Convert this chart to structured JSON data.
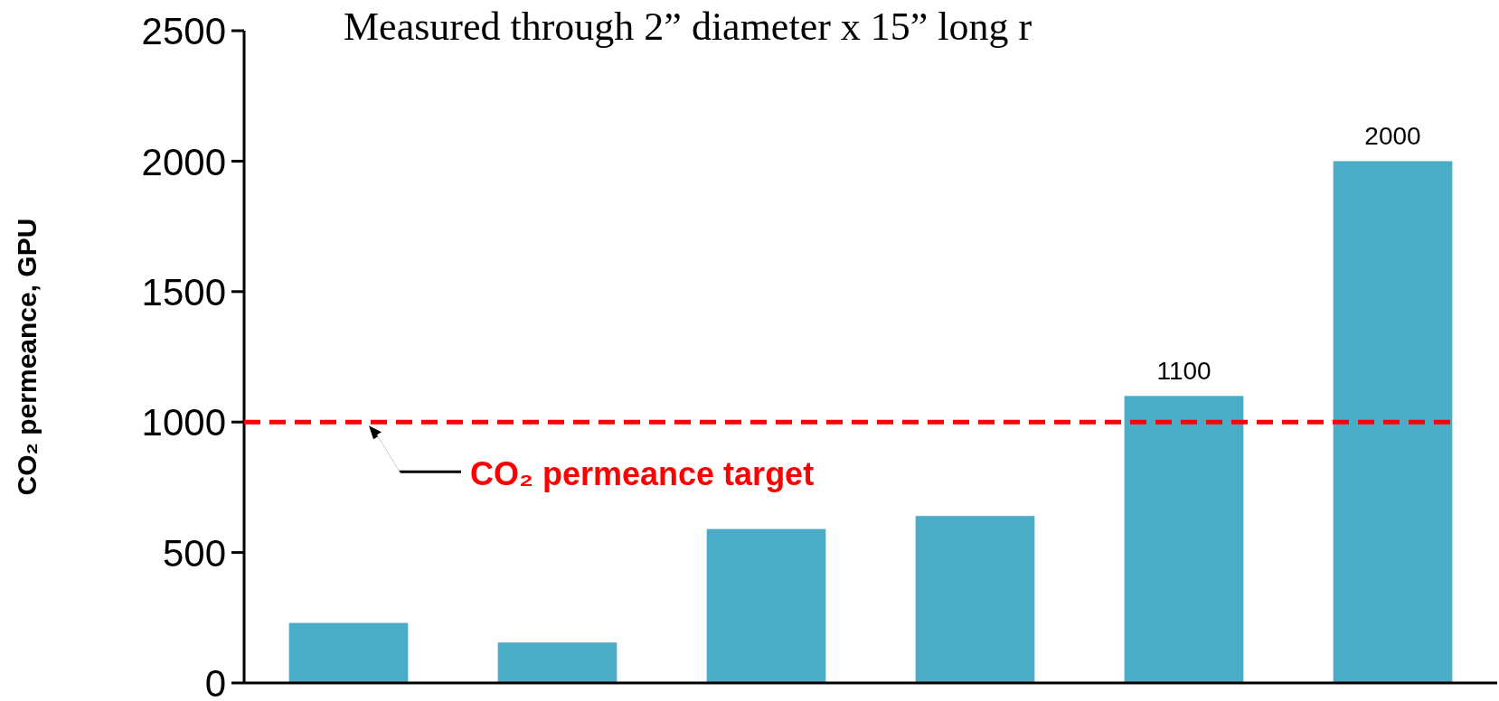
{
  "chart_data": {
    "type": "bar",
    "title": "Measured through 2” diameter x 15” long r",
    "ylabel": "CO₂ permeance, GPU",
    "categories": [
      null,
      null,
      null,
      null,
      null,
      null
    ],
    "values": [
      230,
      155,
      590,
      640,
      1100,
      2000
    ],
    "color": "#4bacc6",
    "value_labels": [
      null,
      null,
      null,
      null,
      "1100",
      "2000"
    ],
    "ylim": [
      0,
      2500
    ],
    "yticks": [
      0,
      500,
      1000,
      1500,
      2000,
      2500
    ],
    "ref_lines": [
      {
        "axis": "y",
        "value": 1000,
        "label": "CO₂ permeance target",
        "color": "#ff0000",
        "line_style": "dashed"
      }
    ]
  }
}
